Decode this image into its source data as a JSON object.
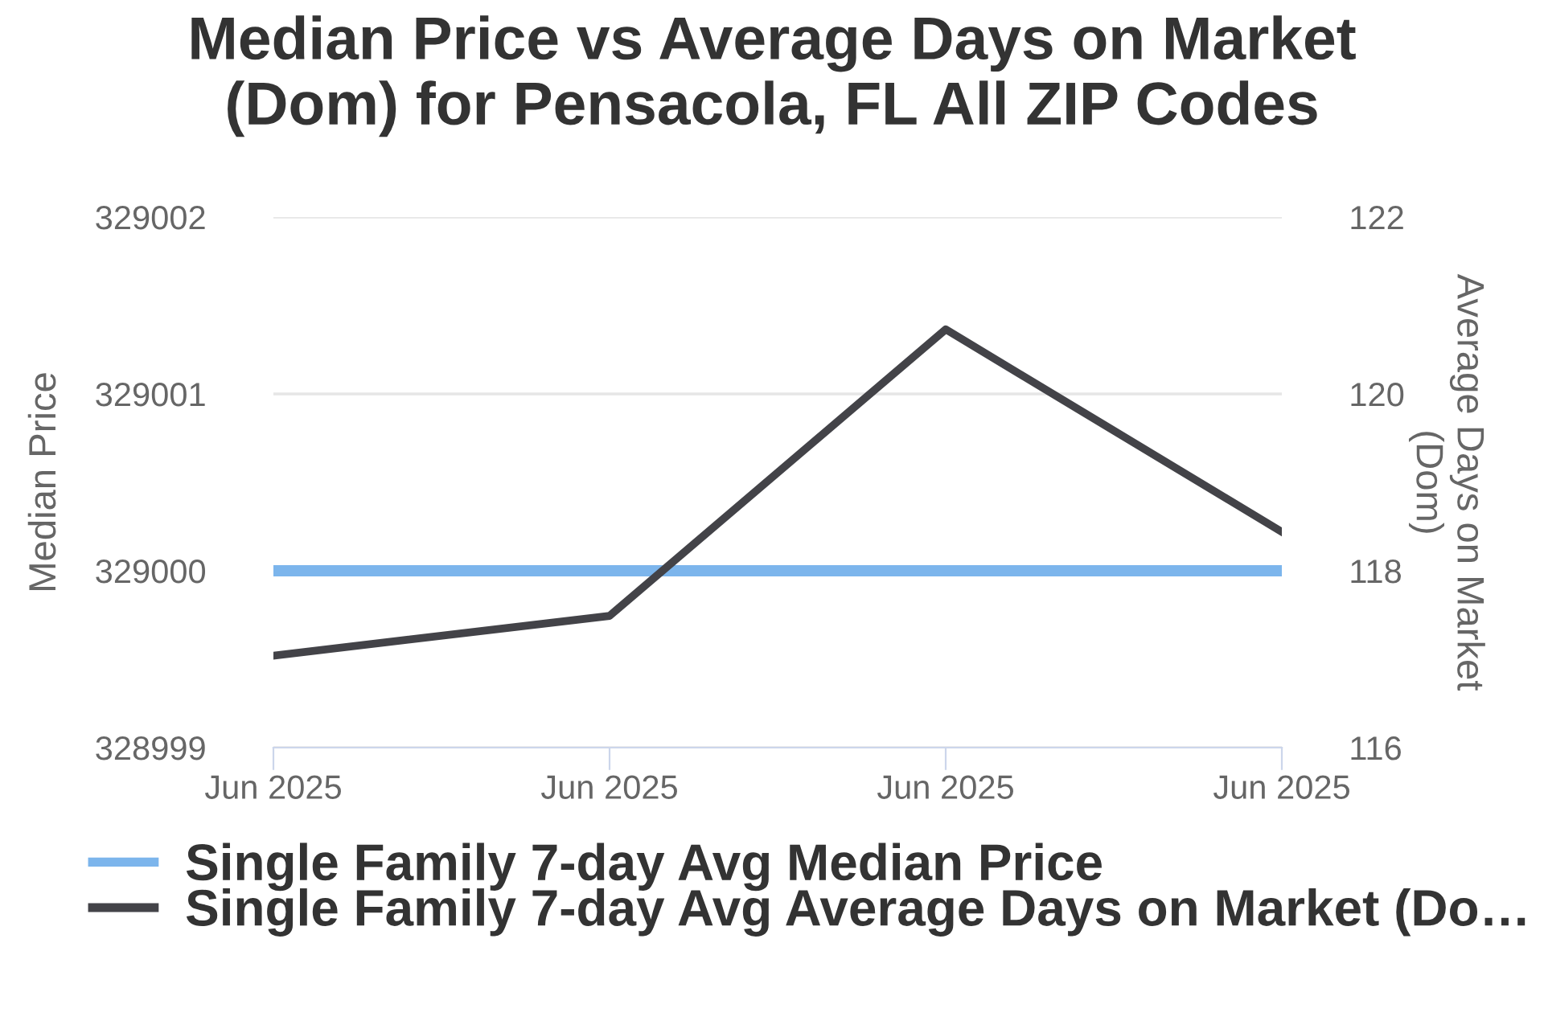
{
  "chart_data": {
    "type": "line",
    "title": "Median Price vs Average Days on Market\n(Dom) for Pensacola, FL All ZIP Codes",
    "ylabel": "Median Price",
    "y2label": "Average Days on Market\n(Dom)",
    "categories": [
      "Jun 2025",
      "Jun 2025",
      "Jun 2025",
      "Jun 2025"
    ],
    "series": [
      {
        "name": "Single Family 7-day Avg Median Price",
        "color": "#7cb5ec",
        "values": [
          329000,
          329000,
          329000,
          329000
        ]
      },
      {
        "name": "Single Family 7-day Avg Average Days on Market (Do…",
        "color": "#434348",
        "values": [
          117.04,
          117.49,
          120.73,
          118.44
        ],
        "axis": "y2"
      }
    ],
    "ylim": [
      328999,
      329002
    ],
    "yticks": [
      328999,
      329000,
      329001,
      329002
    ],
    "y2lim": [
      116,
      122
    ],
    "y2ticks": [
      116,
      118,
      120,
      122
    ],
    "grid": "y",
    "legend": "bottom",
    "marker": "none",
    "line_style": "solid"
  }
}
